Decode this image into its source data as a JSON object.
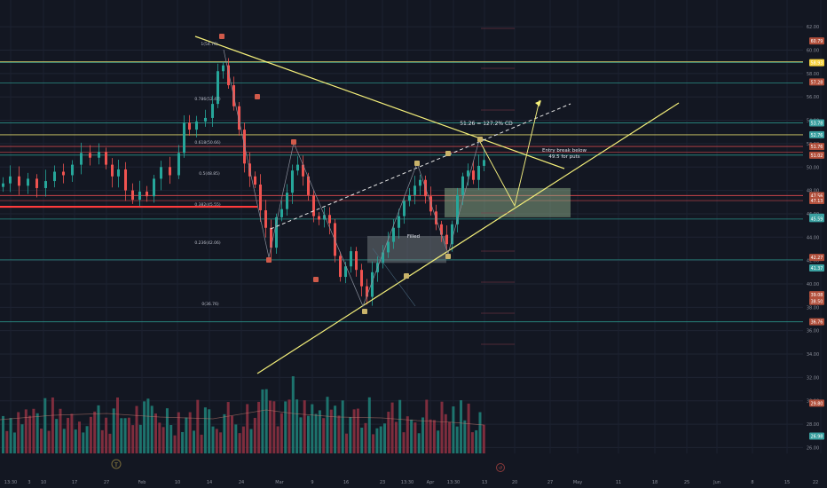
{
  "chart_data": {
    "type": "candlestick",
    "ylim": [
      25.5,
      63
    ],
    "price_ticks": [
      "62.00",
      "60.00",
      "58.00",
      "56.00",
      "54.00",
      "52.00",
      "50.00",
      "48.00",
      "46.00",
      "44.00",
      "42.00",
      "40.00",
      "38.00",
      "36.00",
      "34.00",
      "32.00",
      "30.00",
      "28.00",
      "26.00"
    ],
    "date_ticks": [
      "13:30",
      "3",
      "10",
      "17",
      "27",
      "Feb",
      "10",
      "14",
      "24",
      "Mar",
      "9",
      "16",
      "23",
      "13:30",
      "Apr",
      "13:30",
      "13",
      "20",
      "27",
      "May",
      "11",
      "18",
      "25",
      "Jun",
      "8",
      "15",
      "22"
    ],
    "fib_levels": [
      {
        "label": "1(54.76)",
        "price": 54.76
      },
      {
        "label": "0.786(52.47)",
        "price": 52.47
      },
      {
        "label": "0.618(50.66)",
        "price": 50.66
      },
      {
        "label": "0.5(48.85)",
        "price": 48.85
      },
      {
        "label": "0.382(45.55)",
        "price": 45.55
      },
      {
        "label": "0.236(42.06)",
        "price": 42.06
      },
      {
        "label": "0(36.76)",
        "price": 36.76
      }
    ],
    "price_badges": [
      {
        "text": "60.79",
        "price": 60.79,
        "color": "#b2503c"
      },
      {
        "text": "58.93",
        "price": 58.93,
        "color": "#f7d23e"
      },
      {
        "text": "57.28",
        "price": 57.28,
        "color": "#b2503c"
      },
      {
        "text": "53.78",
        "price": 53.78,
        "color": "#3aa0a0"
      },
      {
        "text": "52.76",
        "price": 52.76,
        "color": "#3aa0a0"
      },
      {
        "text": "51.76",
        "price": 51.76,
        "color": "#b2503c"
      },
      {
        "text": "51.02",
        "price": 51.02,
        "color": "#b2503c"
      },
      {
        "text": "47.56",
        "price": 47.56,
        "color": "#b2503c"
      },
      {
        "text": "47.13",
        "price": 47.13,
        "color": "#b2503c"
      },
      {
        "text": "45.71",
        "price": 45.71,
        "color": "#3aa0a0"
      },
      {
        "text": "45.59",
        "price": 45.59,
        "color": "#3aa0a0"
      },
      {
        "text": "42.27",
        "price": 42.27,
        "color": "#b2503c"
      },
      {
        "text": "41.37",
        "price": 41.37,
        "color": "#3aa0a0"
      },
      {
        "text": "39.08",
        "price": 39.08,
        "color": "#b2503c"
      },
      {
        "text": "38.50",
        "price": 38.5,
        "color": "#b2503c"
      },
      {
        "text": "36.76",
        "price": 36.76,
        "color": "#b2503c"
      },
      {
        "text": "29.80",
        "price": 29.8,
        "color": "#b2503c"
      },
      {
        "text": "26.98",
        "price": 26.98,
        "color": "#3aa0a0"
      }
    ],
    "annotations": {
      "target": "51.26 = 127.2% CD",
      "entry_line1": "Entry break below",
      "entry_line2": "49.5 for puts",
      "filled": "Filled"
    },
    "colors": {
      "bull": "#26a69a",
      "bear": "#ef5350",
      "trend": "#f5f07a",
      "level": "#26a69a",
      "fill_zone": "#7a8f6a"
    }
  },
  "ui": {
    "icons": [
      "tradingview-logo-icon",
      "replay-icon"
    ]
  }
}
